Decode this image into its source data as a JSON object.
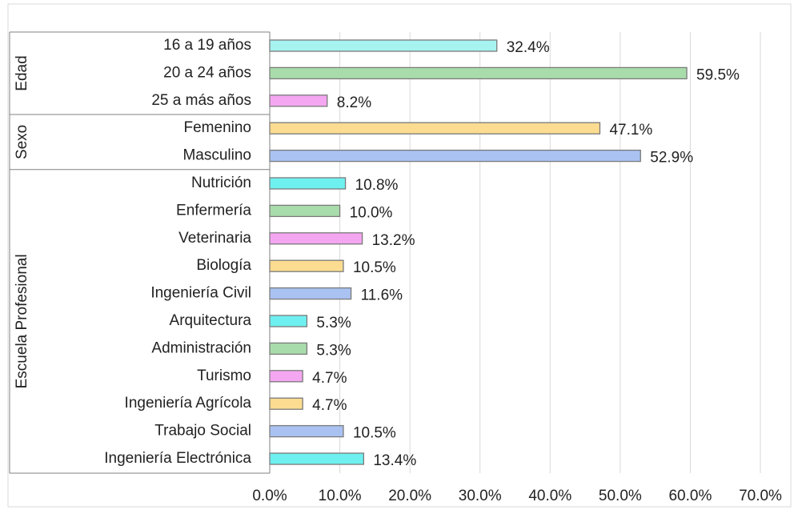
{
  "chart_data": {
    "type": "grouped-hbar",
    "groups": [
      {
        "name": "Edad",
        "categories": [
          "16 a 19 años",
          "20 a 24 años",
          "25 a más años"
        ],
        "values": [
          32.4,
          59.5,
          8.2
        ],
        "value_labels": [
          "32.4%",
          "59.5%",
          "8.2%"
        ],
        "colors": [
          "#a6f3f0",
          "#a9dcab",
          "#f4a6f0"
        ]
      },
      {
        "name": "Sexo",
        "categories": [
          "Femenino",
          "Masculino"
        ],
        "values": [
          47.1,
          52.9
        ],
        "value_labels": [
          "47.1%",
          "52.9%"
        ],
        "colors": [
          "#fcdc90",
          "#a9c2f2"
        ]
      },
      {
        "name": "Escuela Profesional",
        "categories": [
          "Nutrición",
          "Enfermería",
          "Veterinaria",
          "Biología",
          "Ingeniería Civil",
          "Arquitectura",
          "Administración",
          "Turismo",
          "Ingeniería Agrícola",
          "Trabajo Social",
          "Ingeniería Electrónica"
        ],
        "values": [
          10.8,
          10.0,
          13.2,
          10.5,
          11.6,
          5.3,
          5.3,
          4.7,
          4.7,
          10.5,
          13.4
        ],
        "value_labels": [
          "10.8%",
          "10.0%",
          "13.2%",
          "10.5%",
          "11.6%",
          "5.3%",
          "5.3%",
          "4.7%",
          "4.7%",
          "10.5%",
          "13.4%"
        ],
        "colors": [
          "#6ff0f0",
          "#a9dcab",
          "#f4a6f0",
          "#fcdc90",
          "#a9c2f2",
          "#6ff0f0",
          "#a9dcab",
          "#f4a6f0",
          "#fcdc90",
          "#a9c2f2",
          "#6ff0f0"
        ]
      }
    ],
    "xlim": [
      0,
      70
    ],
    "xticks": [
      {
        "value": 0,
        "label": "0.0%"
      },
      {
        "value": 10,
        "label": "10.0%"
      },
      {
        "value": 20,
        "label": "20.0%"
      },
      {
        "value": 30,
        "label": "30.0%"
      },
      {
        "value": 40,
        "label": "40.0%"
      },
      {
        "value": 50,
        "label": "50.0%"
      },
      {
        "value": 60,
        "label": "60.0%"
      },
      {
        "value": 70,
        "label": "70.0%"
      }
    ],
    "grid": true
  }
}
